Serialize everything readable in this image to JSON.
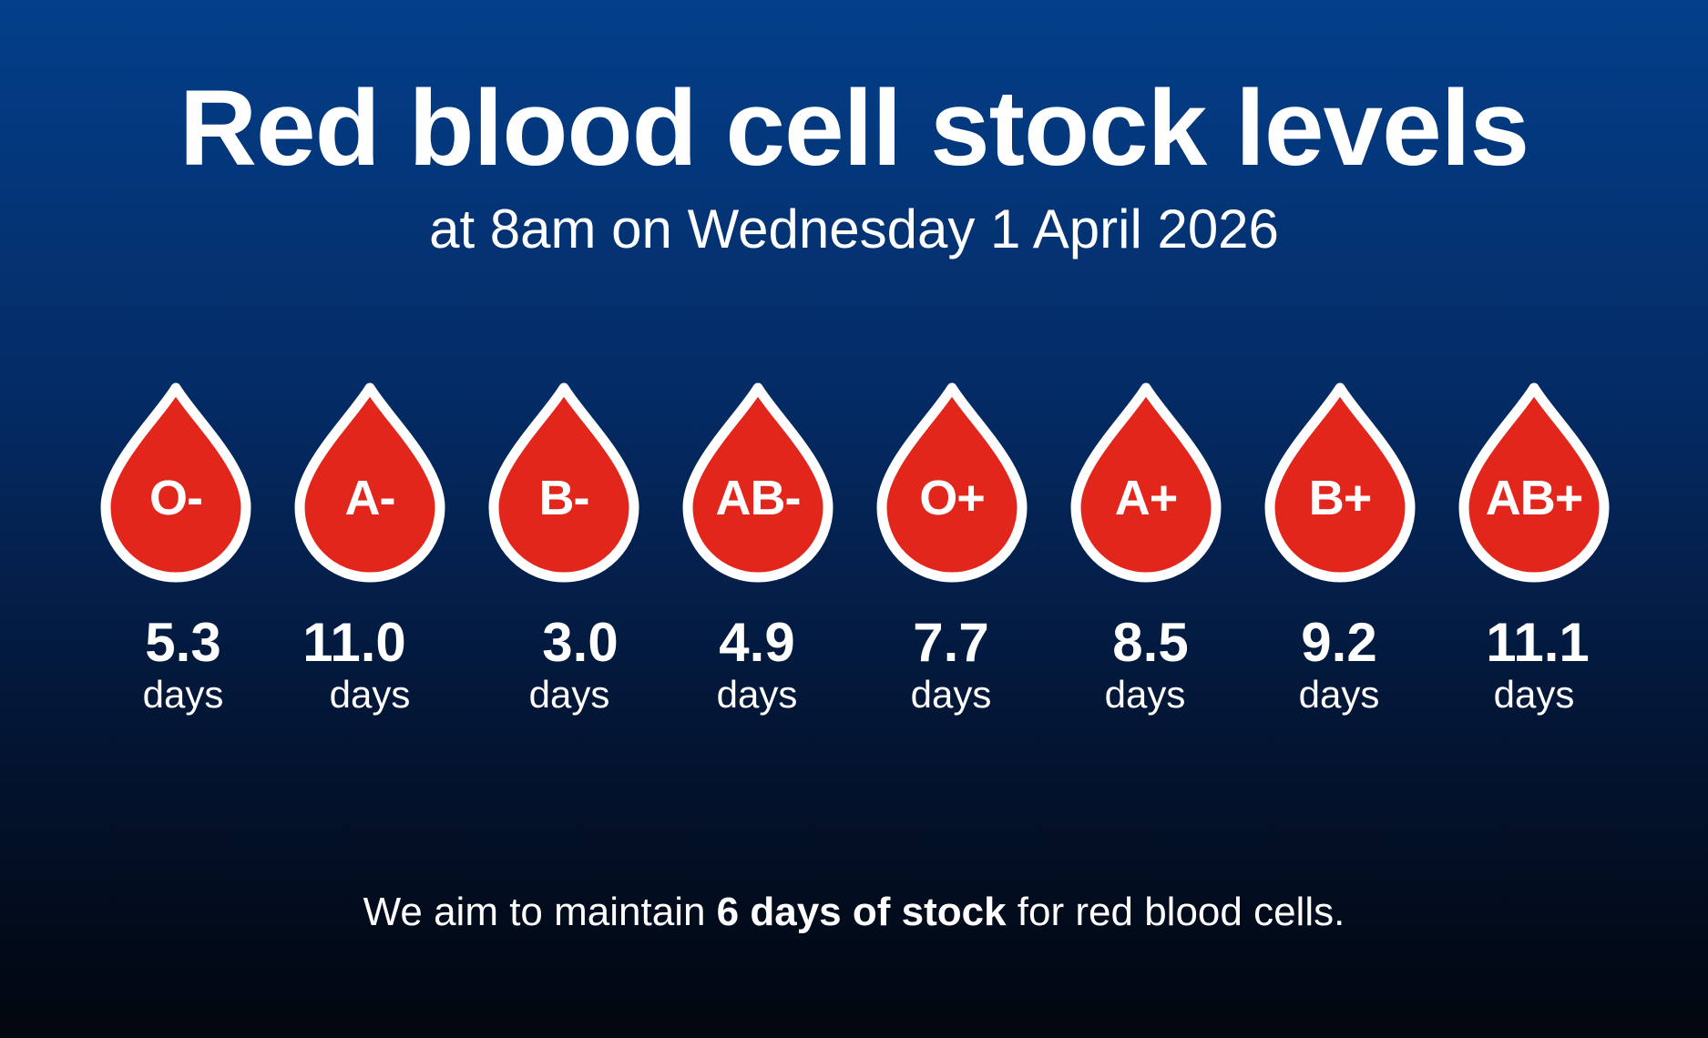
{
  "header": {
    "title": "Red blood cell stock levels",
    "subtitle": "at 8am on Wednesday 1 April 2026"
  },
  "colors": {
    "background_top": "#033f8a",
    "background_bottom": "#02060e",
    "drop_fill": "#e3261b",
    "drop_outline": "#ffffff",
    "text": "#ffffff"
  },
  "blood_types": [
    {
      "label": "O-",
      "value": "5.3",
      "unit": "days"
    },
    {
      "label": "A-",
      "value": "11.0",
      "unit": "days"
    },
    {
      "label": "B-",
      "value": "3.0",
      "unit": "days"
    },
    {
      "label": "AB-",
      "value": "4.9",
      "unit": "days"
    },
    {
      "label": "O+",
      "value": "7.7",
      "unit": "days"
    },
    {
      "label": "A+",
      "value": "8.5",
      "unit": "days"
    },
    {
      "label": "B+",
      "value": "9.2",
      "unit": "days"
    },
    {
      "label": "AB+",
      "value": "11.1",
      "unit": "days"
    }
  ],
  "footer": {
    "prefix": "We aim to maintain ",
    "emphasis": "6 days of stock",
    "suffix": " for red blood cells."
  }
}
